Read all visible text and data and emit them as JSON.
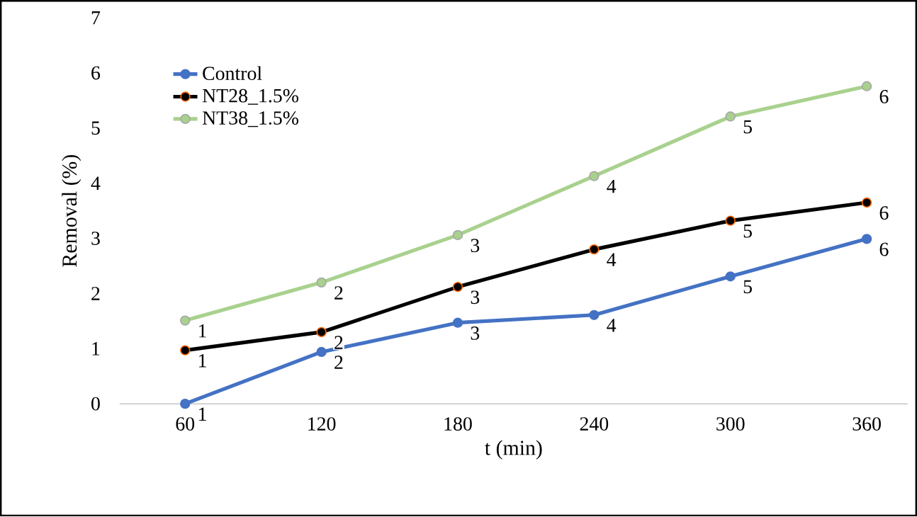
{
  "chart_data": {
    "type": "line",
    "xlabel": "t (min)",
    "ylabel": "Removal (%)",
    "categories": [
      "60",
      "120",
      "180",
      "240",
      "300",
      "360"
    ],
    "series": [
      {
        "name": "Control",
        "color": "#4472c4",
        "values": [
          0,
          0.94,
          1.47,
          1.61,
          2.31,
          2.99
        ]
      },
      {
        "name": "NT28_1.5%",
        "color": "#000000",
        "values": [
          0.97,
          1.3,
          2.12,
          2.8,
          3.32,
          3.65
        ]
      },
      {
        "name": "NT38_1.5%",
        "color": "#a9d18e",
        "values": [
          1.51,
          2.2,
          3.06,
          4.13,
          5.21,
          5.76
        ]
      }
    ],
    "annotations": [
      {
        "text": "1",
        "x": "60",
        "y": 0
      },
      {
        "text": "2",
        "x": "120",
        "y": 0.94
      },
      {
        "text": "3",
        "x": "180",
        "y": 1.47
      },
      {
        "text": "4",
        "x": "240",
        "y": 1.61
      },
      {
        "text": "5",
        "x": "300",
        "y": 2.31
      },
      {
        "text": "6",
        "x": "360",
        "y": 2.99
      },
      {
        "text": "1",
        "x": "60",
        "y": 0.97
      },
      {
        "text": "2",
        "x": "120",
        "y": 1.3
      },
      {
        "text": "3",
        "x": "180",
        "y": 2.12
      },
      {
        "text": "4",
        "x": "240",
        "y": 2.8
      },
      {
        "text": "5",
        "x": "300",
        "y": 3.32
      },
      {
        "text": "6",
        "x": "360",
        "y": 3.65
      },
      {
        "text": "1",
        "x": "60",
        "y": 1.51
      },
      {
        "text": "2",
        "x": "120",
        "y": 2.2
      },
      {
        "text": "3",
        "x": "180",
        "y": 3.06
      },
      {
        "text": "4",
        "x": "240",
        "y": 4.13
      },
      {
        "text": "5",
        "x": "300",
        "y": 5.21
      },
      {
        "text": "6",
        "x": "360",
        "y": 5.76
      }
    ],
    "ylim": [
      0,
      7
    ],
    "yticks": [
      0,
      1,
      2,
      3,
      4,
      5,
      6,
      7
    ],
    "grid": false,
    "legend": "top left",
    "marker": "circle",
    "line_style": "solid"
  }
}
